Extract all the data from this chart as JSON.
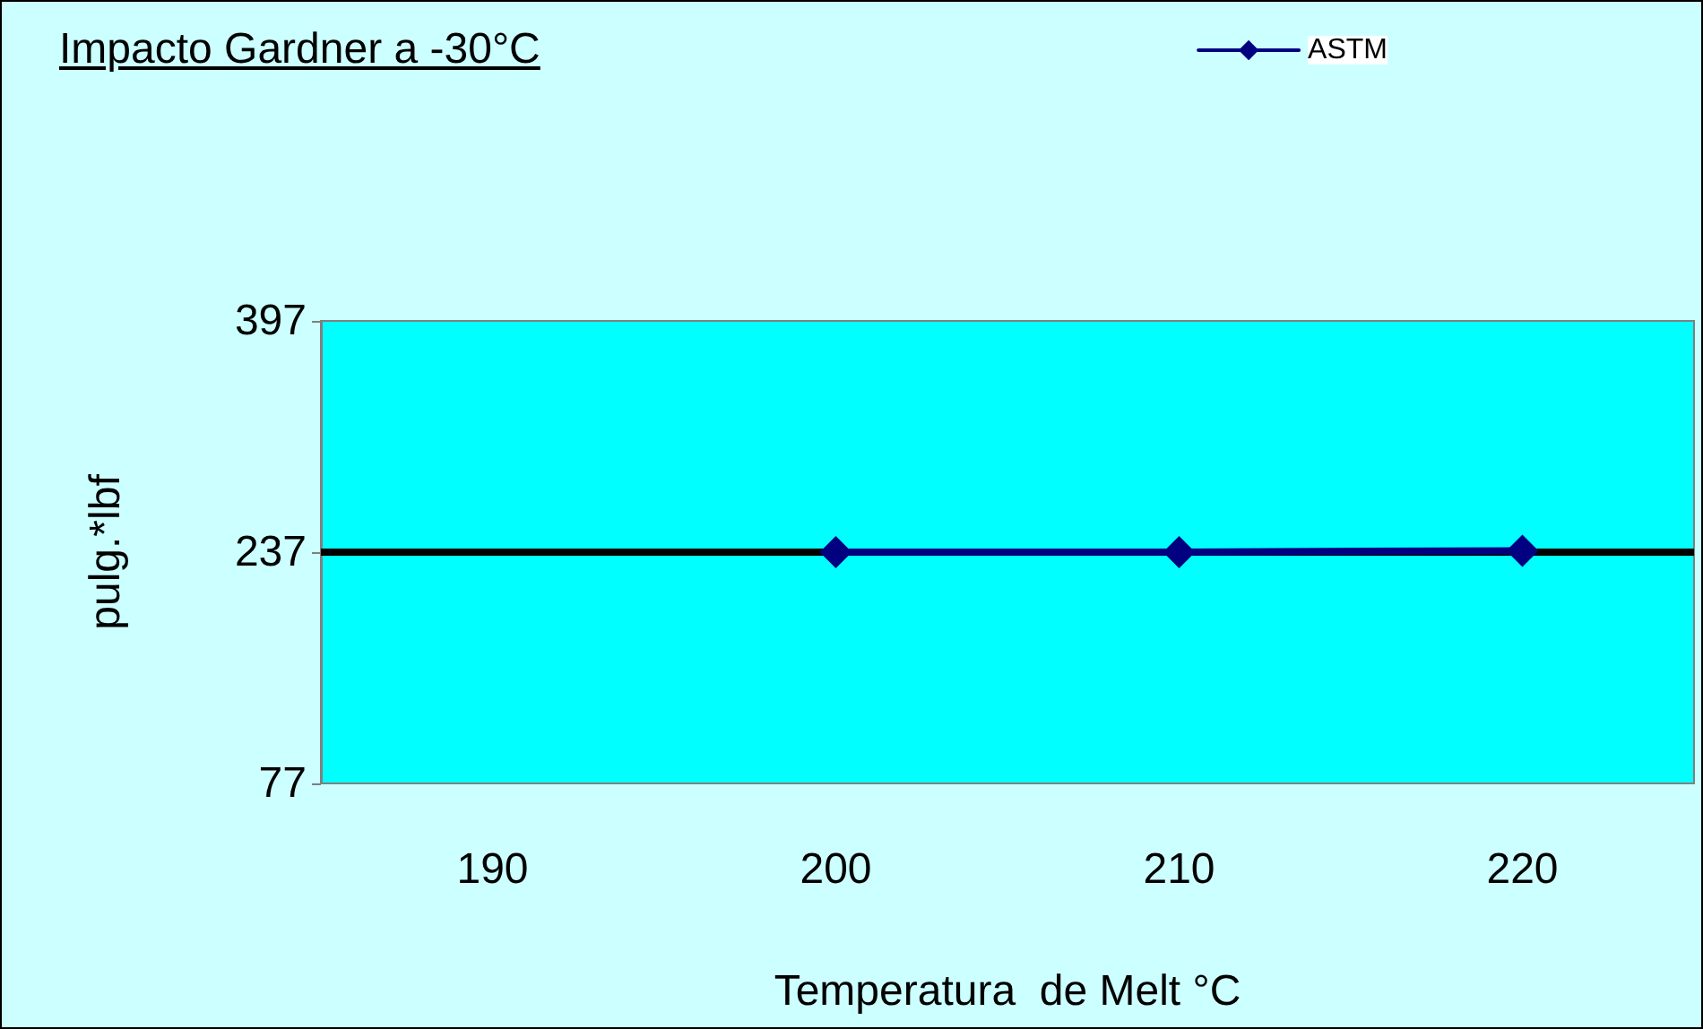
{
  "chart_data": {
    "type": "line",
    "title": "Impacto Gardner a -30°C",
    "xlabel": "Temperatura  de Melt °C",
    "ylabel": "pulg.*lbf",
    "categories": [
      "190",
      "200",
      "210",
      "220"
    ],
    "series": [
      {
        "name": "ASTM",
        "color": "#000080",
        "values": [
          null,
          237,
          237,
          238
        ]
      }
    ],
    "ylim": [
      77,
      397
    ],
    "yticks": [
      77,
      237,
      397
    ],
    "grid": false,
    "legend": "top right",
    "marker": "diamond",
    "line_style": "solid",
    "ref_lines": [
      {
        "axis": "y",
        "value": 237,
        "color": "#000000"
      }
    ]
  }
}
